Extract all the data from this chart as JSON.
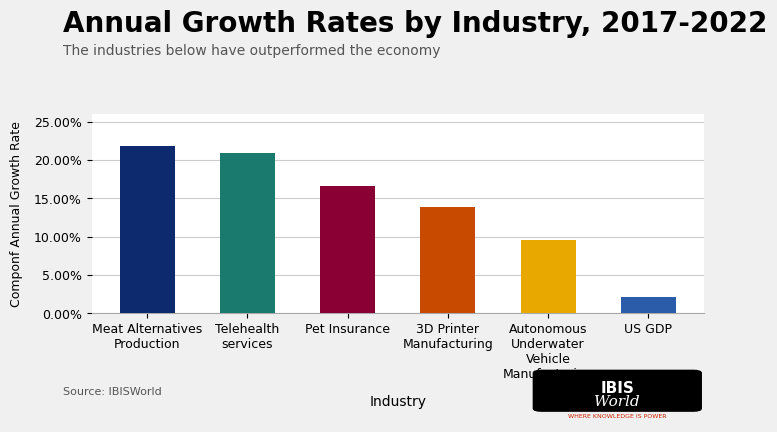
{
  "title": "Annual Growth Rates by Industry, 2017-2022",
  "subtitle": "The industries below have outperformed the economy",
  "xlabel": "Industry",
  "ylabel": "Componf Annual Growth Rate",
  "source": "Source: IBISWorld",
  "categories": [
    "Meat Alternatives\nProduction",
    "Telehealth\nservices",
    "Pet Insurance",
    "3D Printer\nManufacturing",
    "Autonomous\nUnderwater\nVehicle\nManufacturing",
    "US GDP"
  ],
  "values": [
    0.2185,
    0.209,
    0.1655,
    0.1385,
    0.0955,
    0.0215
  ],
  "bar_colors": [
    "#0d2a6e",
    "#1a7a6e",
    "#8b0034",
    "#c84a00",
    "#e8a800",
    "#2a5caa"
  ],
  "ylim": [
    0,
    0.26
  ],
  "yticks": [
    0.0,
    0.05,
    0.1,
    0.15,
    0.2,
    0.25
  ],
  "ytick_labels": [
    "0.00%",
    "5.00%",
    "10.00%",
    "15.00%",
    "20.00%",
    "25.00%"
  ],
  "background_color": "#f0f0f0",
  "plot_bg_color": "#ffffff",
  "title_fontsize": 20,
  "subtitle_fontsize": 10,
  "label_fontsize": 9,
  "tick_fontsize": 9
}
